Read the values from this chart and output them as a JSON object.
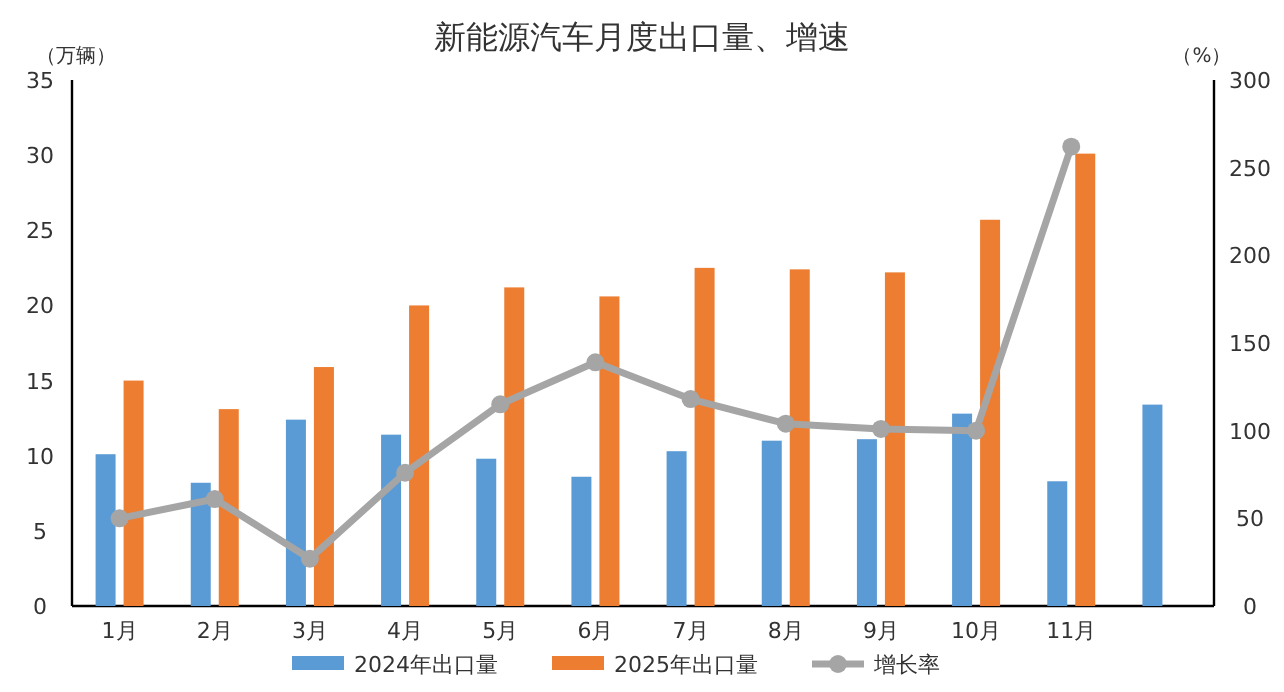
{
  "chart_data": {
    "type": "bar",
    "title": "新能源汽车月度出口量、增速",
    "ylabel": "（万辆）",
    "y2label": "（%）",
    "categories": [
      "1月",
      "2月",
      "3月",
      "4月",
      "5月",
      "6月",
      "7月",
      "8月",
      "9月",
      "10月",
      "11月",
      null
    ],
    "ylim": [
      0,
      35
    ],
    "yticks": [
      0,
      5,
      10,
      15,
      20,
      25,
      30,
      35
    ],
    "y2lim": [
      0,
      300
    ],
    "y2ticks": [
      0,
      50,
      100,
      150,
      200,
      250,
      300
    ],
    "legend": "bottom",
    "grid": false,
    "series": [
      {
        "name": "2024年出口量",
        "color": "#5b9bd5",
        "values": [
          10.1,
          8.2,
          12.4,
          11.4,
          9.8,
          8.6,
          10.3,
          11.0,
          11.1,
          12.8,
          8.3,
          13.4
        ]
      },
      {
        "name": "2025年出口量",
        "color": "#ed7d31",
        "values": [
          15.0,
          13.1,
          15.9,
          20.0,
          21.2,
          20.6,
          22.5,
          22.4,
          22.2,
          25.7,
          30.1,
          null
        ]
      },
      {
        "name": "增长率",
        "type": "line",
        "axis": "y2",
        "marker": "circle",
        "color": "#a5a5a5",
        "values": [
          50,
          61,
          27,
          76,
          115,
          139,
          118,
          104,
          101,
          100,
          262,
          null
        ]
      }
    ]
  }
}
